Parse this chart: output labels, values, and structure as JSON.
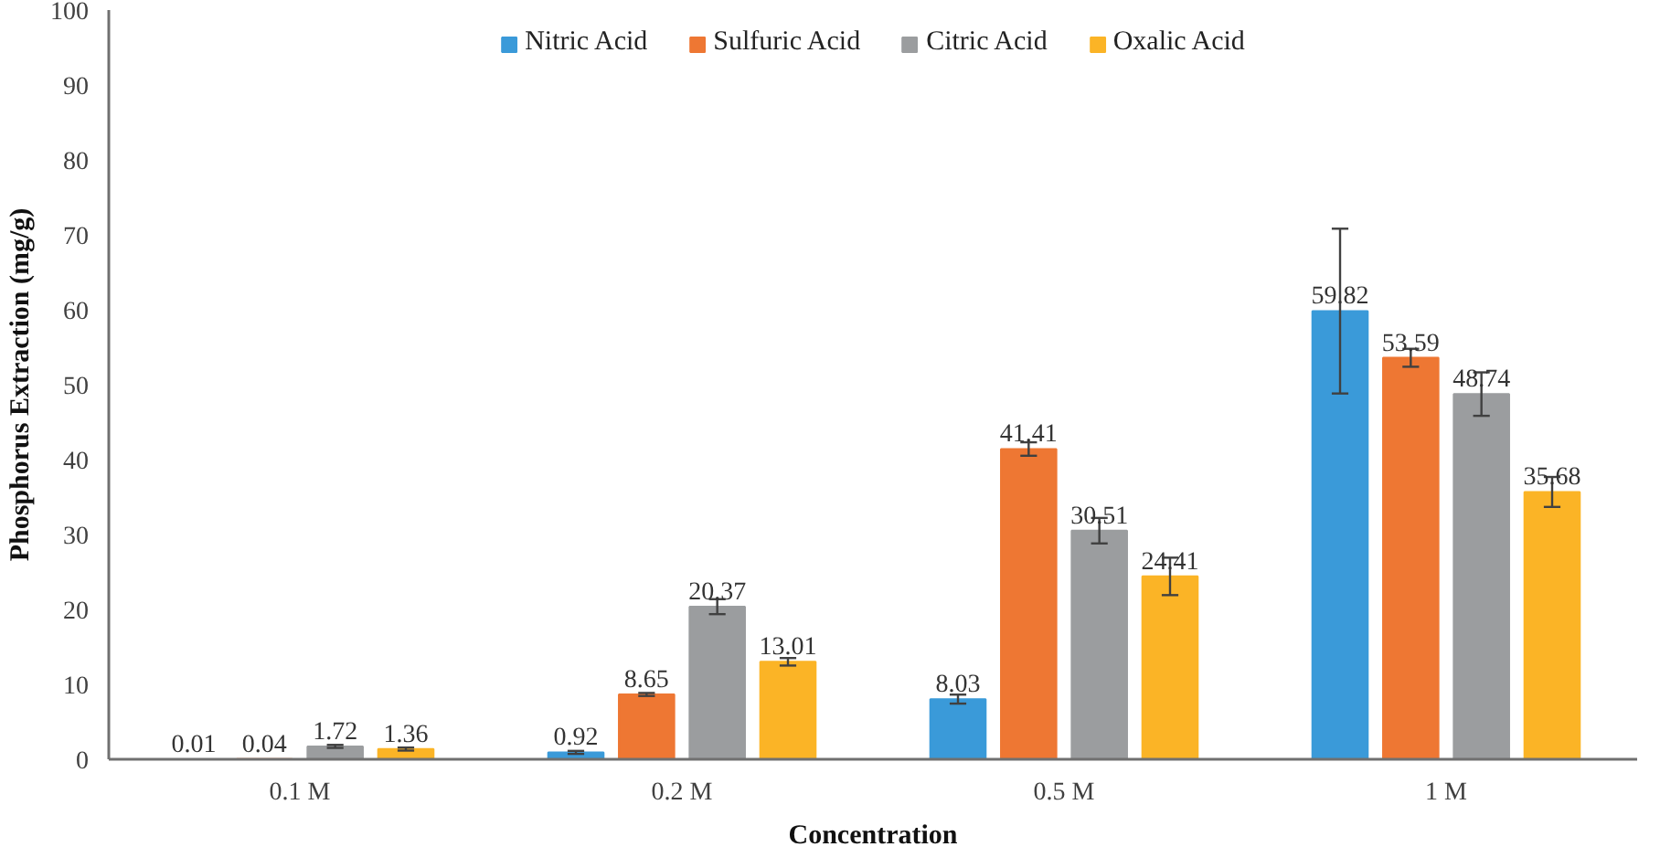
{
  "chart_data": {
    "type": "bar",
    "categories": [
      "0.1 M",
      "0.2 M",
      "0.5 M",
      "1 M"
    ],
    "series": [
      {
        "name": "Nitric Acid",
        "color": "#3a9ad9",
        "values": [
          0.01,
          0.92,
          8.03,
          59.82
        ],
        "errors": [
          null,
          0.2,
          0.6,
          11
        ]
      },
      {
        "name": "Sulfuric Acid",
        "color": "#ee7733",
        "values": [
          0.04,
          8.65,
          41.41,
          53.59
        ],
        "errors": [
          null,
          0.2,
          0.9,
          1.2
        ]
      },
      {
        "name": "Citric Acid",
        "color": "#9b9d9f",
        "values": [
          1.72,
          20.37,
          30.51,
          48.74
        ],
        "errors": [
          0.2,
          1,
          1.7,
          2.9
        ]
      },
      {
        "name": "Oxalic Acid",
        "color": "#fbb426",
        "values": [
          1.36,
          13.01,
          24.41,
          35.68
        ],
        "errors": [
          0.2,
          0.5,
          2.5,
          2
        ]
      }
    ],
    "xlabel": "Concentration",
    "ylabel": "Phosphorus Extraction (mg/g)",
    "ylim": [
      0,
      100
    ],
    "yticks": [
      0,
      10,
      20,
      30,
      40,
      50,
      60,
      70,
      80,
      90,
      100
    ],
    "data_labels": true,
    "legend": "top"
  }
}
